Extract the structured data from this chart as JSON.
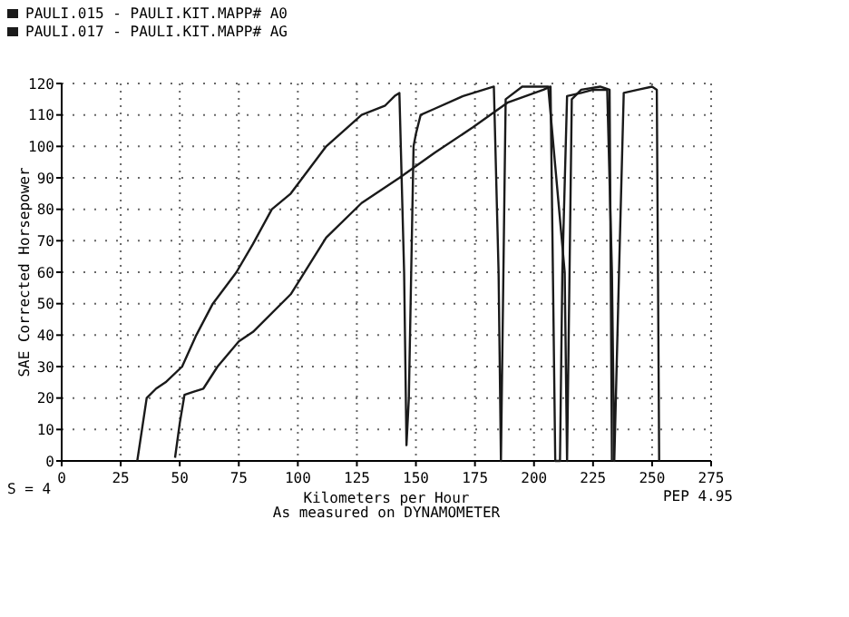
{
  "chart_data": {
    "type": "line",
    "xlabel": "Kilometers per Hour",
    "ylabel": "SAE Corrected Horsepower",
    "xlim": [
      0,
      275
    ],
    "xticks": [
      0,
      25,
      50,
      75,
      100,
      125,
      150,
      175,
      200,
      225,
      250,
      275
    ],
    "ylim": [
      0,
      120
    ],
    "yticks": [
      0,
      10,
      20,
      30,
      40,
      50,
      60,
      70,
      80,
      90,
      100,
      110,
      120
    ],
    "grid": true,
    "legend": "top left",
    "line_style": "solid",
    "marker": "none",
    "annotations": [
      "S = 4",
      "PEP 4.95",
      "As measured on DYNAMOMETER"
    ],
    "series": [
      {
        "name": "PAULI.015 - PAULI.KIT.MAPP# A0",
        "color": "#1a1a1a",
        "x": [
          32,
          34,
          36,
          40,
          44,
          51,
          57,
          64,
          74,
          81,
          89,
          97,
          112,
          127,
          137,
          141,
          143,
          145,
          146,
          147,
          149,
          150,
          152,
          158,
          170,
          183,
          185,
          186,
          188,
          195,
          206,
          213,
          214,
          216,
          220,
          228,
          232,
          233
        ],
        "values": [
          0,
          10,
          20,
          23,
          25,
          30,
          40,
          50,
          60,
          69,
          80,
          85,
          100,
          110,
          113,
          116,
          117,
          60,
          5,
          20,
          100,
          104,
          110,
          112,
          116,
          119,
          60,
          0,
          115,
          119,
          119,
          60,
          0,
          115,
          118,
          119,
          118,
          0
        ]
      },
      {
        "name": "PAULI.017 - PAULI.KIT.MAPP# AG",
        "color": "#1a1a1a",
        "x": [
          48,
          50,
          52,
          56,
          60,
          66,
          75,
          81,
          97,
          112,
          127,
          143,
          158,
          174,
          189,
          204,
          207,
          208,
          209,
          211,
          212,
          214,
          220,
          225,
          231,
          233,
          234,
          236,
          238,
          244,
          250,
          252,
          253
        ],
        "values": [
          1,
          12,
          21,
          22,
          23,
          30,
          38,
          41,
          53,
          71,
          82,
          90,
          98,
          106,
          114,
          118,
          119,
          60,
          0,
          0,
          60,
          116,
          117,
          118,
          118,
          60,
          0,
          60,
          117,
          118,
          119,
          118,
          0
        ]
      }
    ]
  }
}
